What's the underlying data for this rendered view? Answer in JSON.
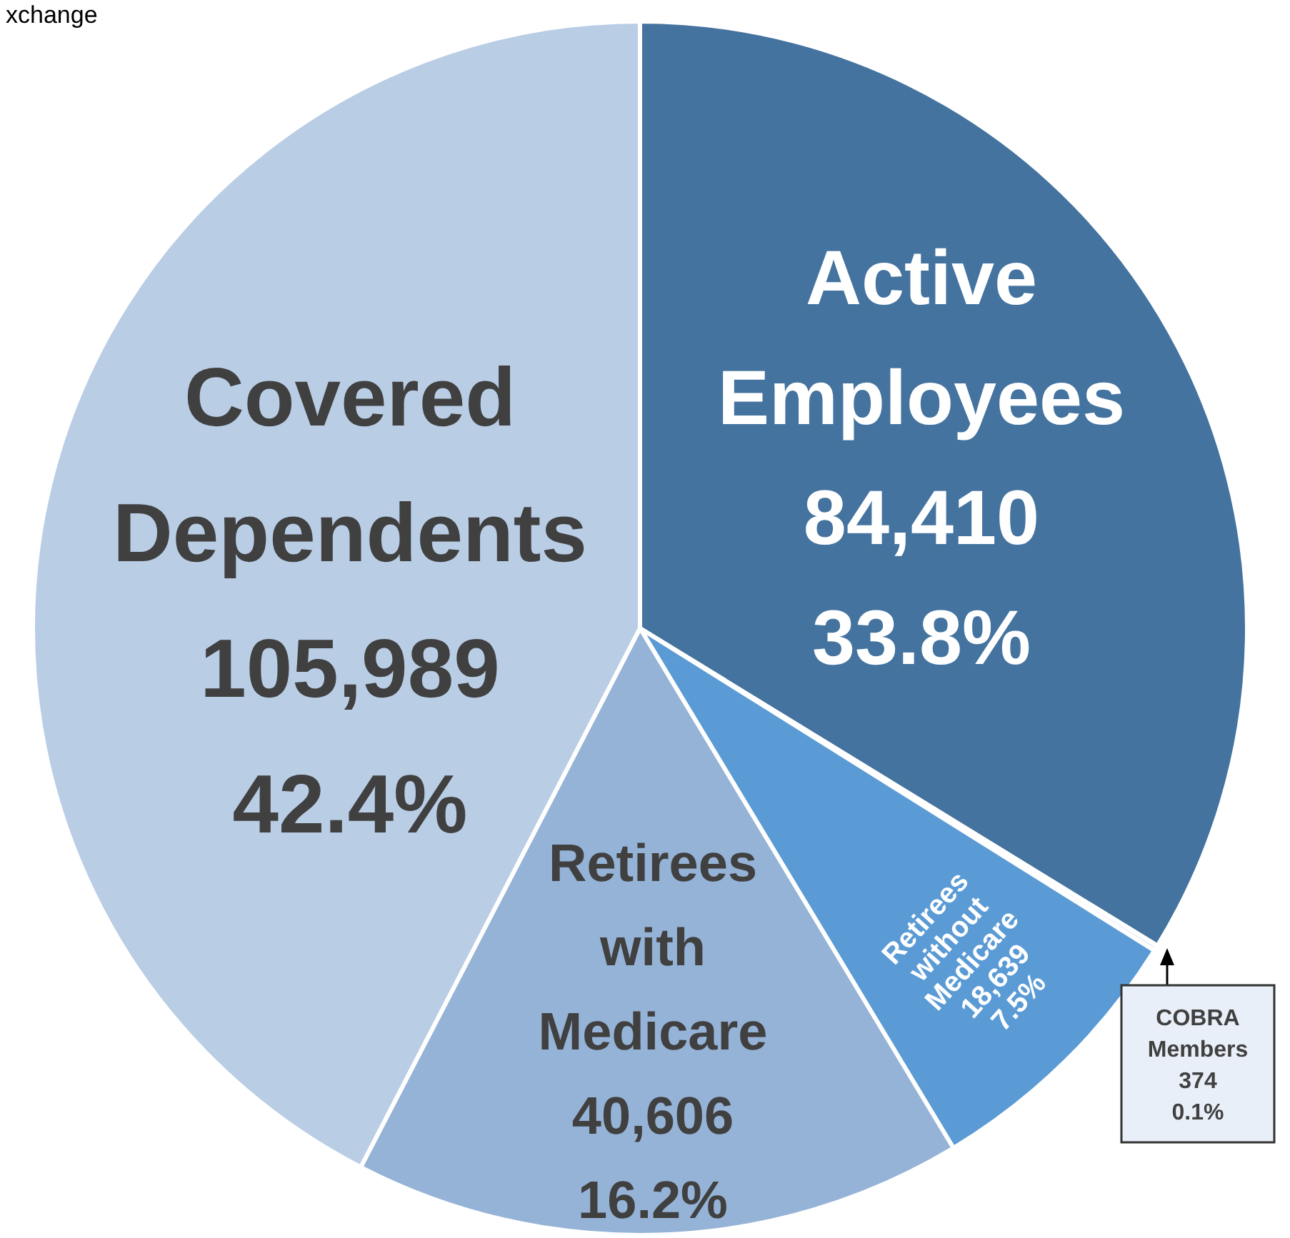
{
  "chart_data": {
    "type": "pie",
    "title": "xchange",
    "categories": [
      "Active Employees",
      "COBRA Members",
      "Retirees without Medicare",
      "Retirees with Medicare",
      "Covered Dependents"
    ],
    "values": [
      84410,
      374,
      18639,
      40606,
      105989
    ],
    "colors": [
      "#44739f",
      "#e9eff8",
      "#5b9bd5",
      "#95b3d7",
      "#b9cde5"
    ],
    "value_labels": [
      "84,410\n33.8%",
      "374\n0.1%",
      "18,639\n7.5%",
      "40,606\n16.2%",
      "105,989\n42.4%"
    ]
  }
}
